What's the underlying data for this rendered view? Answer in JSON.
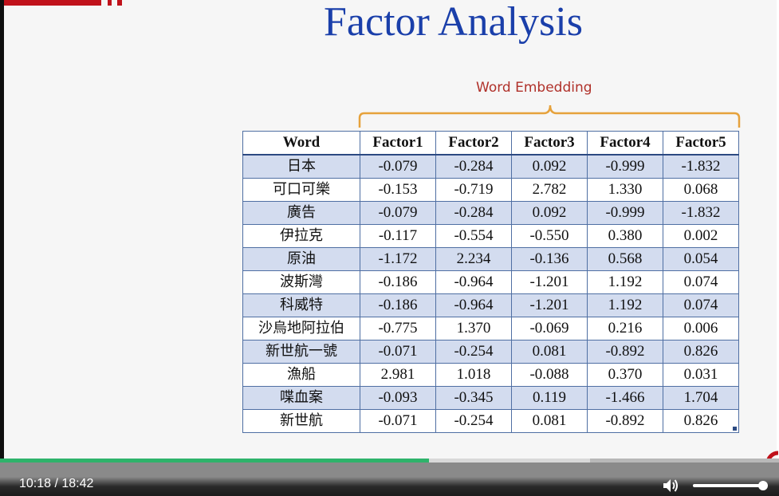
{
  "slide": {
    "title": "Factor Analysis",
    "brace_label": "Word Embedding",
    "colors": {
      "title": "#1a3faa",
      "brace": "#e6a23c",
      "label": "#b0312a",
      "row_band": "#d3dcef",
      "logo": "#c0121b"
    }
  },
  "table": {
    "headers": [
      "Word",
      "Factor1",
      "Factor2",
      "Factor3",
      "Factor4",
      "Factor5"
    ],
    "rows": [
      [
        "日本",
        "-0.079",
        "-0.284",
        "0.092",
        "-0.999",
        "-1.832"
      ],
      [
        "可口可樂",
        "-0.153",
        "-0.719",
        "2.782",
        "1.330",
        "0.068"
      ],
      [
        "廣告",
        "-0.079",
        "-0.284",
        "0.092",
        "-0.999",
        "-1.832"
      ],
      [
        "伊拉克",
        "-0.117",
        "-0.554",
        "-0.550",
        "0.380",
        "0.002"
      ],
      [
        "原油",
        "-1.172",
        "2.234",
        "-0.136",
        "0.568",
        "0.054"
      ],
      [
        "波斯灣",
        "-0.186",
        "-0.964",
        "-1.201",
        "1.192",
        "0.074"
      ],
      [
        "科威特",
        "-0.186",
        "-0.964",
        "-1.201",
        "1.192",
        "0.074"
      ],
      [
        "沙烏地阿拉伯",
        "-0.775",
        "1.370",
        "-0.069",
        "0.216",
        "0.006"
      ],
      [
        "新世航一號",
        "-0.071",
        "-0.254",
        "0.081",
        "-0.892",
        "0.826"
      ],
      [
        "漁船",
        "2.981",
        "1.018",
        "-0.088",
        "0.370",
        "0.031"
      ],
      [
        "喋血案",
        "-0.093",
        "-0.345",
        "0.119",
        "-1.466",
        "1.704"
      ],
      [
        "新世航",
        "-0.071",
        "-0.254",
        "0.081",
        "-0.892",
        "0.826"
      ]
    ]
  },
  "player": {
    "time_text": "10:18 / 18:42",
    "progress_fraction": 0.551,
    "volume_icon": "speaker-icon",
    "volume_level": 0.93,
    "colors": {
      "played": "#2fb36b"
    }
  }
}
